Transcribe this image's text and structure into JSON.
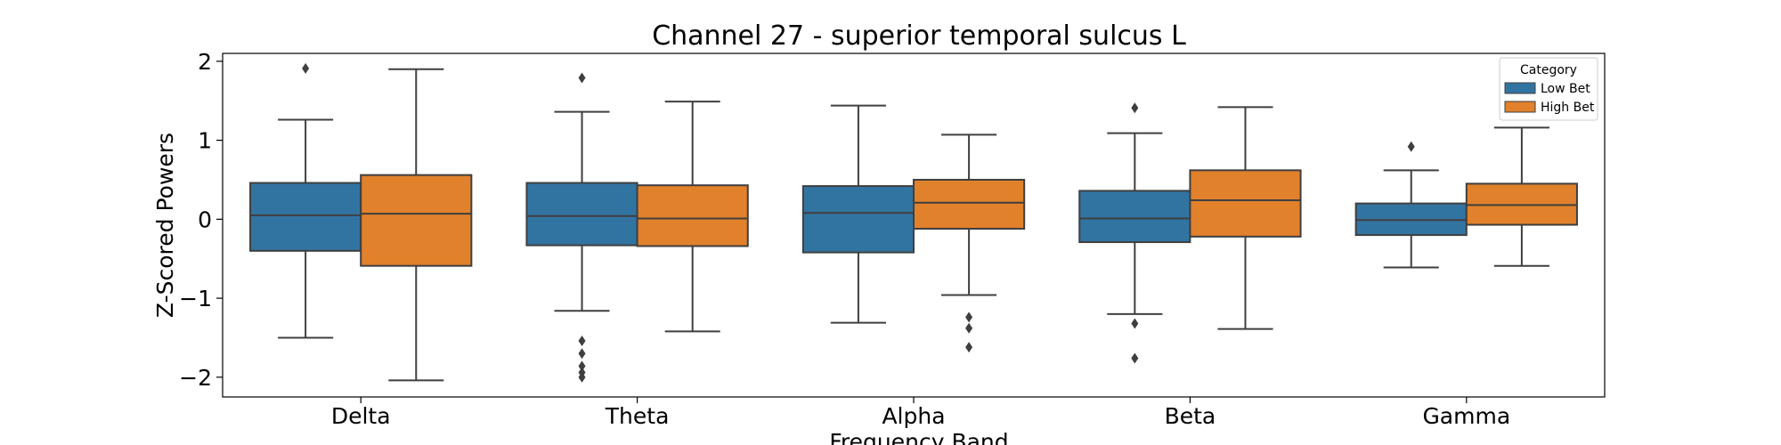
{
  "chart_data": {
    "type": "box",
    "title": "Channel 27 - superior temporal sulcus L",
    "xlabel": "Frequency Band",
    "ylabel": "Z-Scored Powers",
    "ylim": [
      -2.25,
      2.1
    ],
    "yticks": [
      -2,
      -1,
      0,
      1,
      2
    ],
    "ytick_labels": [
      "−2",
      "−1",
      "0",
      "1",
      "2"
    ],
    "categories": [
      "Delta",
      "Theta",
      "Alpha",
      "Beta",
      "Gamma"
    ],
    "legend": {
      "title": "Category",
      "position": "top-right"
    },
    "series": [
      {
        "name": "Low Bet",
        "color": "#3274a1",
        "boxes": [
          {
            "whislo": -1.5,
            "q1": -0.4,
            "med": 0.05,
            "q3": 0.46,
            "whishi": 1.26,
            "fliers": [
              1.91
            ]
          },
          {
            "whislo": -1.16,
            "q1": -0.33,
            "med": 0.04,
            "q3": 0.46,
            "whishi": 1.36,
            "fliers": [
              1.79,
              -1.54,
              -1.7,
              -1.86,
              -1.94,
              -2.0
            ]
          },
          {
            "whislo": -1.31,
            "q1": -0.42,
            "med": 0.08,
            "q3": 0.42,
            "whishi": 1.44,
            "fliers": []
          },
          {
            "whislo": -1.2,
            "q1": -0.29,
            "med": 0.01,
            "q3": 0.36,
            "whishi": 1.09,
            "fliers": [
              1.41,
              -1.32,
              -1.76
            ]
          },
          {
            "whislo": -0.61,
            "q1": -0.2,
            "med": -0.01,
            "q3": 0.2,
            "whishi": 0.62,
            "fliers": [
              0.92
            ]
          }
        ]
      },
      {
        "name": "High Bet",
        "color": "#e1812c",
        "boxes": [
          {
            "whislo": -2.04,
            "q1": -0.59,
            "med": 0.07,
            "q3": 0.56,
            "whishi": 1.9,
            "fliers": []
          },
          {
            "whislo": -1.42,
            "q1": -0.34,
            "med": 0.01,
            "q3": 0.43,
            "whishi": 1.49,
            "fliers": []
          },
          {
            "whislo": -0.96,
            "q1": -0.12,
            "med": 0.21,
            "q3": 0.5,
            "whishi": 1.07,
            "fliers": [
              -1.24,
              -1.38,
              -1.62
            ]
          },
          {
            "whislo": -1.39,
            "q1": -0.22,
            "med": 0.24,
            "q3": 0.62,
            "whishi": 1.42,
            "fliers": []
          },
          {
            "whislo": -0.59,
            "q1": -0.07,
            "med": 0.18,
            "q3": 0.45,
            "whishi": 1.16,
            "fliers": []
          }
        ]
      }
    ]
  }
}
